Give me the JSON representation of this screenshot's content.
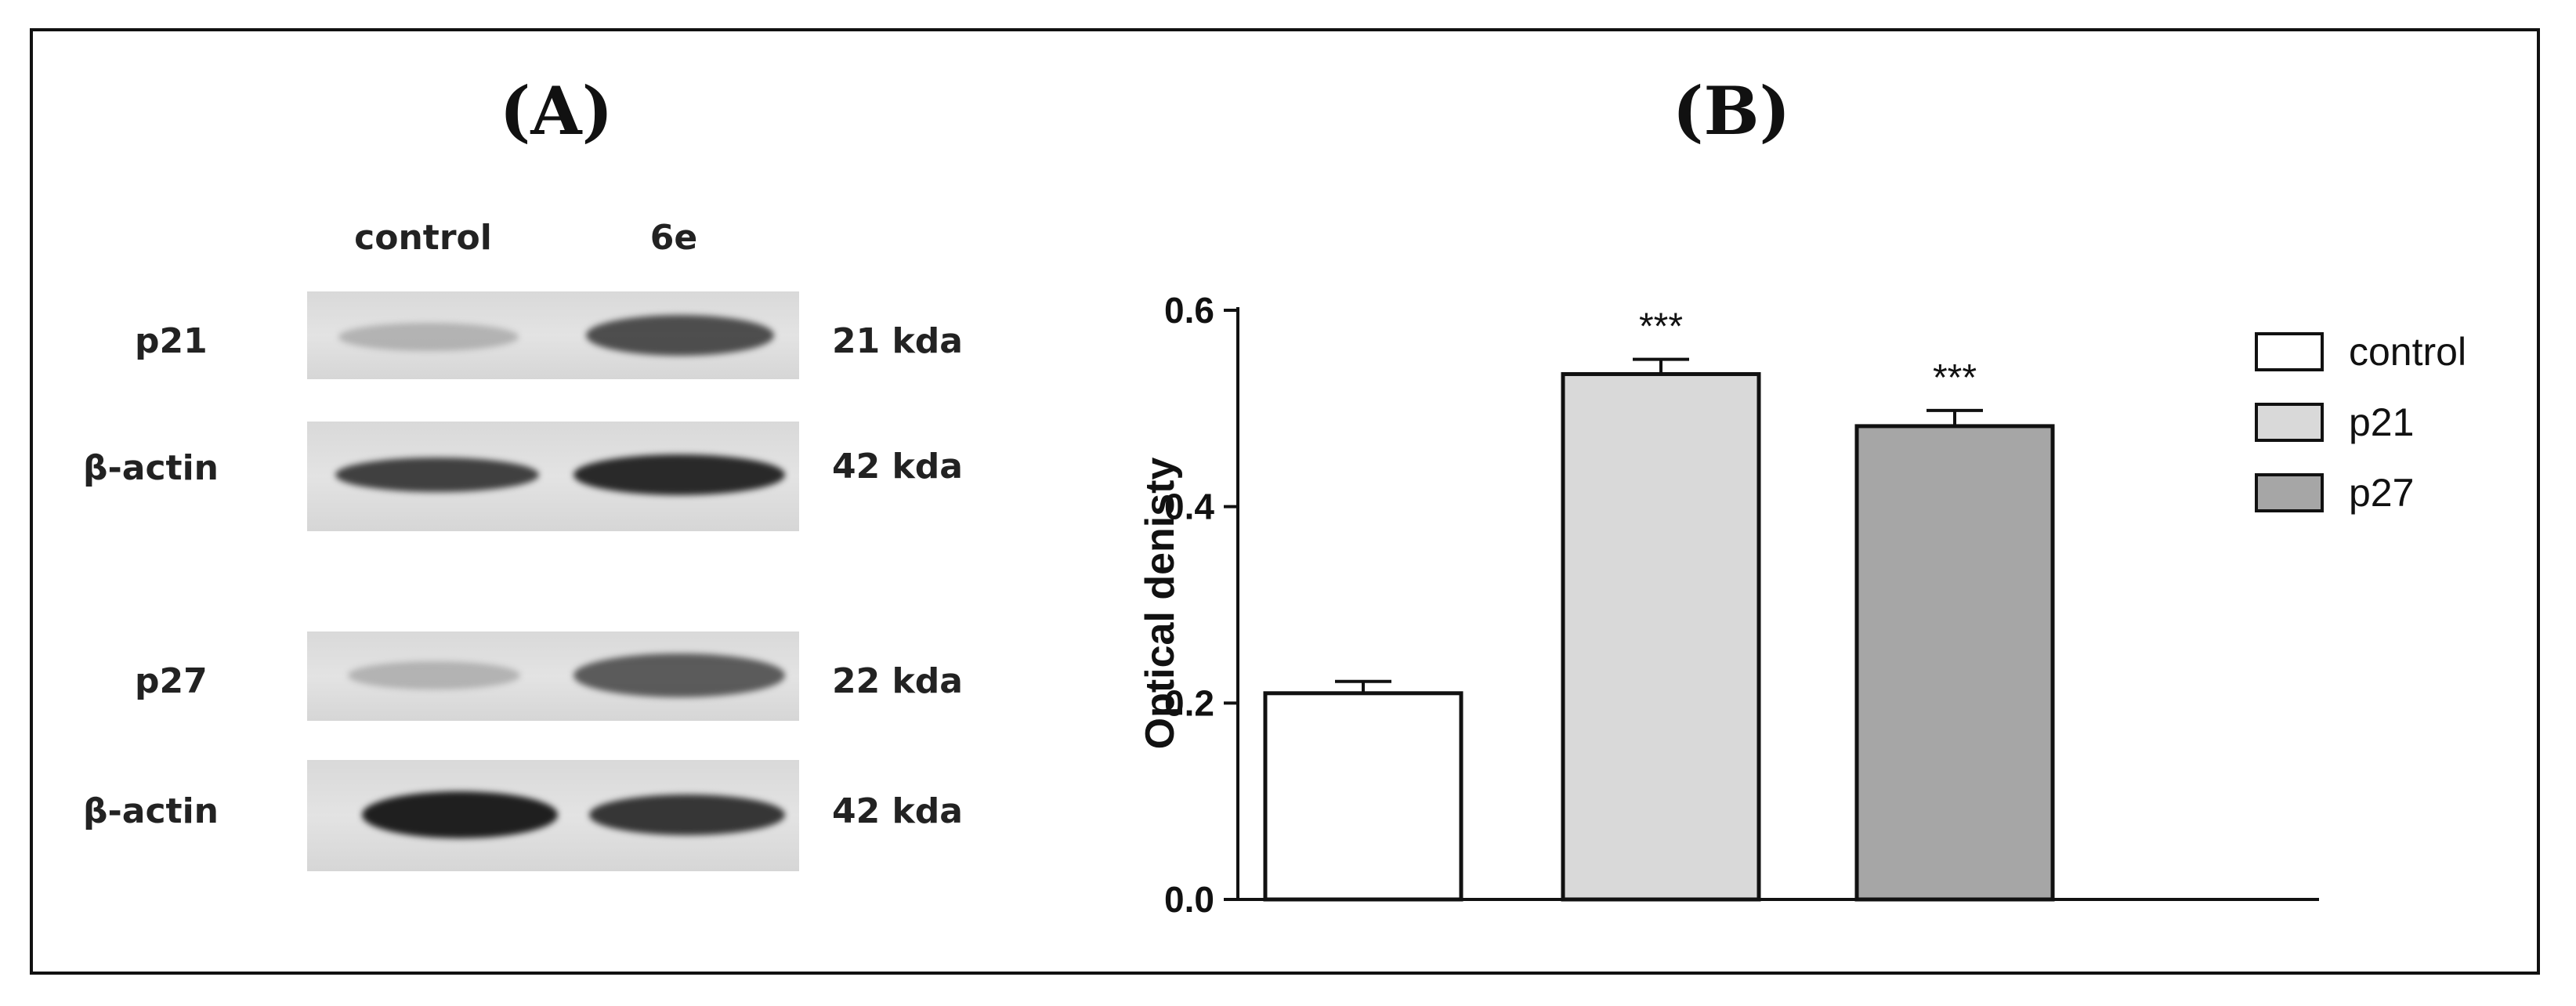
{
  "panel_a": {
    "label": "(A)",
    "lanes": [
      "control",
      "6e"
    ],
    "rows": [
      {
        "name": "p21",
        "kda": "21 kda",
        "band_intensity": [
          0.25,
          0.75
        ]
      },
      {
        "name": "β-actin",
        "kda": "42 kda",
        "band_intensity": [
          0.8,
          0.9
        ]
      },
      {
        "name": "p27",
        "kda": "22 kda",
        "band_intensity": [
          0.25,
          0.7
        ]
      },
      {
        "name": "β-actin",
        "kda": "42 kda",
        "band_intensity": [
          0.95,
          0.85
        ]
      }
    ]
  },
  "panel_b": {
    "label": "(B)"
  },
  "chart_data": {
    "type": "bar",
    "categories": [
      "control",
      "p21",
      "p27"
    ],
    "values": [
      0.21,
      0.535,
      0.482
    ],
    "errors": [
      0.012,
      0.015,
      0.016
    ],
    "annotations": [
      "",
      "***",
      "***"
    ],
    "colors": [
      "#ffffff",
      "#d9d9d9",
      "#a6a6a6"
    ],
    "ylabel": "Optical denisty",
    "xlabel": "",
    "ylim": [
      0,
      0.6
    ],
    "yticks": [
      "0.0",
      "0.2",
      "0.4",
      "0.6"
    ],
    "legend": {
      "placement": "top-right",
      "entries": [
        "control",
        "p21",
        "p27"
      ]
    }
  }
}
